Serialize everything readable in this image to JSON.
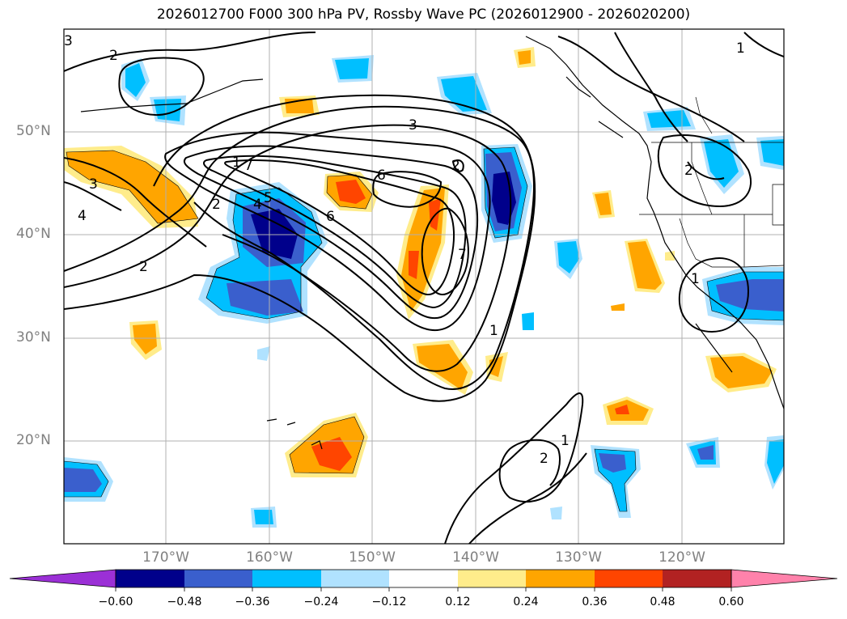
{
  "title": "2026012700 F000 300 hPa PV, Rossby Wave PC (2026012900 - 2026020200)",
  "lat_labels": [
    "50°N",
    "40°N",
    "30°N",
    "20°N"
  ],
  "lon_labels": [
    "170°W",
    "160°W",
    "150°W",
    "140°W",
    "130°W",
    "120°W"
  ],
  "colorbar": {
    "ticks": [
      "−0.60",
      "−0.48",
      "−0.36",
      "−0.24",
      "−0.12",
      "0.12",
      "0.24",
      "0.36",
      "0.48",
      "0.60"
    ],
    "colors": [
      "#9b30d6",
      "#00008b",
      "#3a5fcd",
      "#00bfff",
      "#b0e2ff",
      "#ffffff",
      "#ffec8b",
      "#ffa500",
      "#ff4500",
      "#b22222",
      "#ff82ab"
    ]
  },
  "contour_labels": [
    "3",
    "2",
    "1",
    "2",
    "3",
    "4",
    "2",
    "2",
    "3",
    "4",
    "5",
    "7",
    "6",
    "6",
    "7",
    "1",
    "2",
    "1",
    "2",
    "1",
    "1"
  ],
  "features": [
    "300 hPa PV contours",
    "Rossby Wave PC shading",
    "coastlines",
    "state borders",
    "lat/lon gridlines"
  ]
}
